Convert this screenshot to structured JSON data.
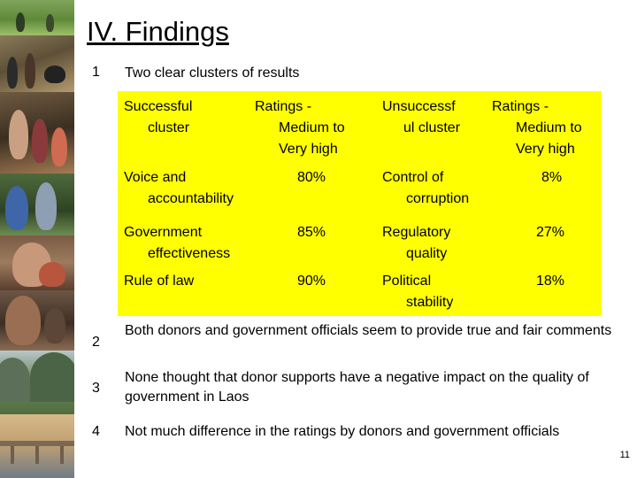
{
  "slide": {
    "title": "IV. Findings",
    "page_number": "11"
  },
  "findings": [
    {
      "number": "1",
      "text": "Two clear clusters of results"
    },
    {
      "number": "2",
      "text": "Both donors and government officials seem to provide true and fair comments"
    },
    {
      "number": "3",
      "text": "None thought that donor supports have a negative impact on the quality of government in Laos"
    },
    {
      "number": "4",
      "text": "Not much difference in the ratings by donors and government officials"
    }
  ],
  "table": {
    "headers": {
      "successful": [
        "Successful",
        "cluster"
      ],
      "ratings_left": [
        "Ratings -",
        "Medium to",
        "Very high"
      ],
      "unsuccessful": [
        "Unsuccessf",
        "ul cluster"
      ],
      "ratings_right": [
        "Ratings -",
        "Medium to",
        "Very high"
      ]
    },
    "rows": [
      {
        "success_label": [
          "Voice and",
          "accountability"
        ],
        "success_rating": "80%",
        "unsuccess_label": [
          "Control of",
          "corruption"
        ],
        "unsuccess_rating": "8%"
      },
      {
        "success_label": [
          "Government",
          "effectiveness"
        ],
        "success_rating": "85%",
        "unsuccess_label": [
          "Regulatory",
          "quality"
        ],
        "unsuccess_rating": "27%"
      },
      {
        "success_label": [
          "Rule of law"
        ],
        "success_rating": "90%",
        "unsuccess_label": [
          "Political",
          "stability"
        ],
        "unsuccess_rating": "18%"
      }
    ]
  },
  "colors": {
    "table_background": "#ffff00"
  },
  "photos": [
    "rice-field-photo",
    "village-people-photo",
    "family-photo",
    "women-photo",
    "woman-sewing-photo",
    "elder-woman-photo",
    "mountain-landscape-photo",
    "bridge-river-photo"
  ]
}
